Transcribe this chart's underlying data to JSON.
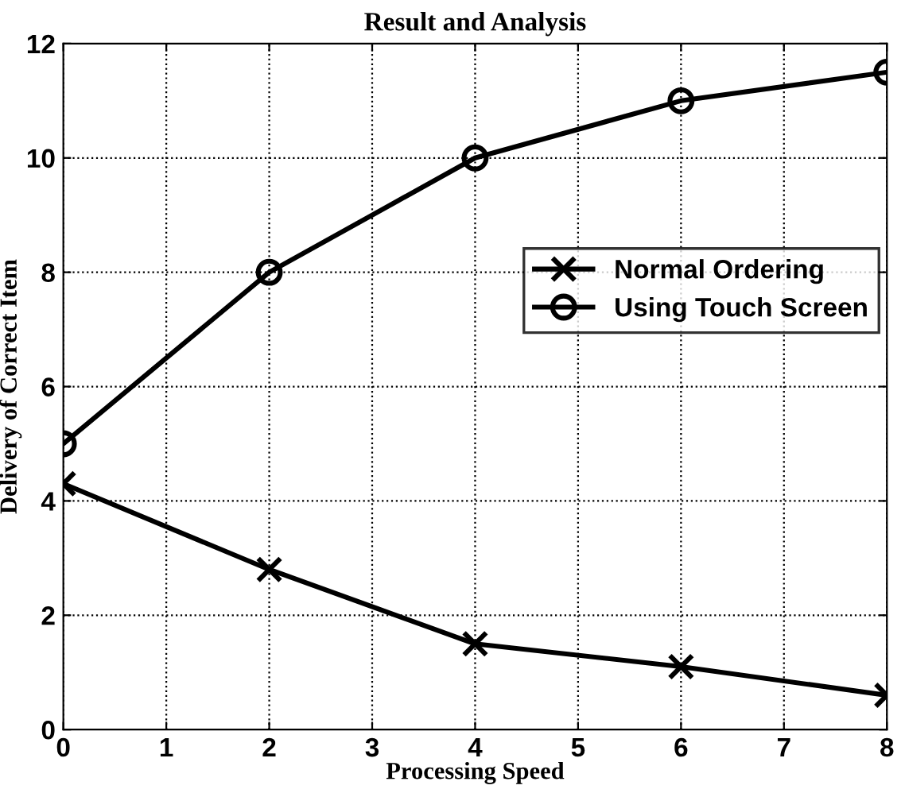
{
  "chart_data": {
    "type": "line",
    "title": "Result and Analysis",
    "xlabel": "Processing Speed",
    "ylabel": "Delivery of Correct Item",
    "series": [
      {
        "name": "Normal Ordering",
        "color": "#000000",
        "marker": "cross",
        "x": [
          0,
          2,
          4,
          6,
          8
        ],
        "values": [
          4.3,
          2.8,
          1.5,
          1.1,
          0.6
        ]
      },
      {
        "name": "Using Touch Screen",
        "color": "#000000",
        "marker": "circle",
        "x": [
          0,
          2,
          4,
          6,
          8
        ],
        "values": [
          5,
          8,
          10,
          11,
          11.5
        ]
      }
    ],
    "xlim": [
      0,
      8
    ],
    "ylim": [
      0,
      12
    ],
    "xticks": [
      0,
      1,
      2,
      3,
      4,
      5,
      6,
      7,
      8
    ],
    "yticks": [
      0,
      2,
      4,
      6,
      8,
      10,
      12
    ],
    "grid": true,
    "legend": "right",
    "line_style": "solid"
  }
}
